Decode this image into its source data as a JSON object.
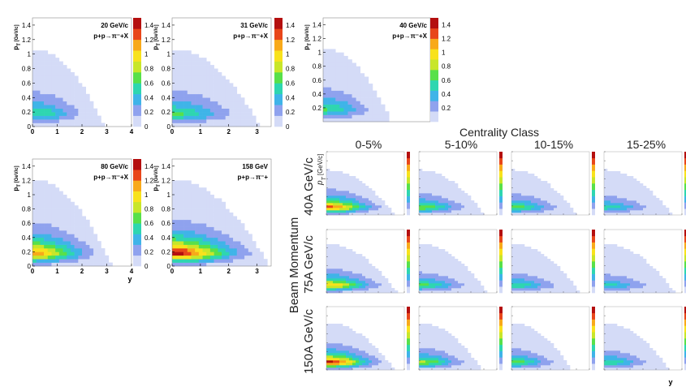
{
  "figure": {
    "column_header": "Centrality Class",
    "row_group_label": "Beam Momentum",
    "pt_label": "p",
    "pt_sub": "T",
    "pt_unit": "[GeV/c]",
    "y_label": "y"
  },
  "colors": {
    "scale": [
      "#d4dbf7",
      "#8fa2ee",
      "#3fb4e8",
      "#2ed6b0",
      "#58e04a",
      "#c8e62a",
      "#f8e21c",
      "#f8a91a",
      "#e8461a",
      "#b40f0f"
    ],
    "background": "#ffffff"
  },
  "chart_data": [
    {
      "type": "heatmap",
      "id": "pp-20",
      "annotation": [
        "20 GeV/c",
        "p+p→π⁻+X"
      ],
      "xlabel": "y",
      "ylabel": "p_T [GeV/c]",
      "xlim": [
        0,
        4
      ],
      "ylim": [
        0,
        1.5
      ],
      "xticks": [
        "0",
        "1",
        "2",
        "3",
        "4"
      ],
      "yticks": [
        "0",
        "0.2",
        "0.4",
        "0.6",
        "0.8",
        "1",
        "1.2",
        "1.4"
      ],
      "zlim": [
        0,
        1.5
      ],
      "zticks": [
        "0",
        "0.2",
        "0.4",
        "0.6",
        "0.8",
        "1",
        "1.2",
        "1.4"
      ],
      "peak": 0.62,
      "kinematic_edge": {
        "y0": 1.05,
        "y_max": 2.9
      }
    },
    {
      "type": "heatmap",
      "id": "pp-31",
      "annotation": [
        "31 GeV/c",
        "p+p→π⁻+X"
      ],
      "xlabel": "y",
      "ylabel": "p_T [GeV/c]",
      "xlim": [
        0,
        3.5
      ],
      "ylim": [
        0,
        1.5
      ],
      "xticks": [
        "0",
        "1",
        "2",
        "3"
      ],
      "yticks": [
        "0",
        "0.2",
        "0.4",
        "0.6",
        "0.8",
        "1",
        "1.2",
        "1.4"
      ],
      "zlim": [
        0,
        1.5
      ],
      "zticks": [
        "0",
        "0.2",
        "0.4",
        "0.6",
        "0.8",
        "1",
        "1.2",
        "1.4"
      ],
      "peak": 0.66,
      "kinematic_edge": {
        "y0": 1.05,
        "y_max": 3.1
      }
    },
    {
      "type": "heatmap",
      "id": "pp-40",
      "annotation": [
        "40 GeV/c",
        "p+p→π⁻+X"
      ],
      "xlabel": "y",
      "ylabel": "p_T [GeV/c]",
      "xlim": [
        0,
        3.5
      ],
      "ylim": [
        0,
        1.5
      ],
      "xticks": [],
      "yticks": [
        "0.2",
        "0.4",
        "0.6",
        "0.8",
        "1",
        "1.2",
        "1.4"
      ],
      "zlim": [
        0,
        1.5
      ],
      "zticks": [
        "0.2",
        "0.4",
        "0.6",
        "0.8",
        "1",
        "1.2",
        "1.4"
      ],
      "peak": 0.64,
      "kinematic_edge": {
        "y0": 1.05,
        "y_max": 2.2
      }
    },
    {
      "type": "heatmap",
      "id": "pp-80",
      "annotation": [
        "80 GeV/c",
        "p+p→π⁻+X"
      ],
      "xlabel": "y",
      "ylabel": "p_T [GeV/c]",
      "xlim": [
        0,
        4
      ],
      "ylim": [
        0,
        1.5
      ],
      "xticks": [
        "0",
        "1",
        "2",
        "3",
        "4"
      ],
      "yticks": [
        "0",
        "0.2",
        "0.4",
        "0.6",
        "0.8",
        "1",
        "1.2",
        "1.4"
      ],
      "zlim": [
        0,
        1.5
      ],
      "zticks": [
        "0",
        "0.2",
        "0.4",
        "0.6",
        "0.8",
        "1",
        "1.2",
        "1.4"
      ],
      "peak": 1.15,
      "kinematic_edge": {
        "y0": 1.2,
        "y_max": 3.2
      }
    },
    {
      "type": "heatmap",
      "id": "pp-158",
      "annotation": [
        "158 GeV",
        "p+p→π⁻+"
      ],
      "xlabel": "y",
      "ylabel": "p_T [GeV/c]",
      "xlim": [
        0,
        3.5
      ],
      "ylim": [
        0,
        1.5
      ],
      "xticks": [
        "0",
        "1",
        "2",
        "3"
      ],
      "yticks": [
        "0",
        "0.2",
        "0.4",
        "0.6",
        "0.8",
        "1",
        "1.2",
        "1.4"
      ],
      "zlim": [
        0,
        1.5
      ],
      "zticks": [],
      "peak": 1.45,
      "kinematic_edge": {
        "y0": 1.2,
        "y_max": 3.4
      }
    },
    {
      "type": "heatmap",
      "id": "grid",
      "columns": [
        "0-5%",
        "5-10%",
        "10-15%",
        "15-25%"
      ],
      "rows": [
        "40A GeV/c",
        "75A GeV/c",
        "150A GeV/c"
      ],
      "row_group_label": "Beam Momentum",
      "column_group_label": "Centrality Class",
      "xlabel": "y",
      "ylabel": "p_T [GeV/c]",
      "peaks": [
        [
          1.25,
          0.75,
          0.7,
          0.55
        ],
        [
          1.05,
          0.65,
          0.6,
          0.5
        ],
        [
          1.4,
          0.8,
          0.72,
          0.6
        ]
      ],
      "kinematic_edges": [
        [
          {
            "y0": 1.05,
            "y_max": 2.6
          },
          {
            "y0": 1.05,
            "y_max": 2.5
          },
          {
            "y0": 1.05,
            "y_max": 2.5
          },
          {
            "y0": 1.05,
            "y_max": 2.6
          }
        ],
        [
          {
            "y0": 1.15,
            "y_max": 2.7
          },
          {
            "y0": 1.15,
            "y_max": 2.6
          },
          {
            "y0": 1.15,
            "y_max": 2.6
          },
          {
            "y0": 1.15,
            "y_max": 2.7
          }
        ],
        [
          {
            "y0": 1.1,
            "y_max": 2.6
          },
          {
            "y0": 1.1,
            "y_max": 2.4
          },
          {
            "y0": 1.1,
            "y_max": 2.3
          },
          {
            "y0": 1.1,
            "y_max": 2.5
          }
        ]
      ]
    }
  ]
}
